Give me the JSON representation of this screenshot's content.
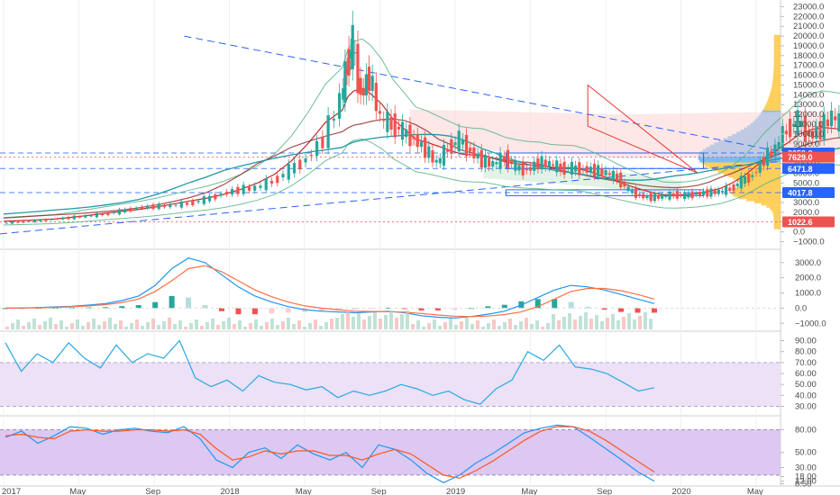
{
  "chart_data": [
    {
      "type": "candlestick",
      "panel": "price",
      "ylim": [
        -1500,
        23500
      ],
      "yticks": [
        "23000.0",
        "22000.0",
        "21000.0",
        "20000.0",
        "19000.0",
        "18000.0",
        "17000.0",
        "16000.0",
        "15000.0",
        "14000.0",
        "13000.0",
        "12000.0",
        "11000.0",
        "10000.0",
        "9000.0",
        "7000.0",
        "6000.0",
        "5000.0",
        "4000.0",
        "3000.0",
        "2000.0",
        "1000.0",
        "0.0",
        "−1000.0"
      ],
      "ytick_values": [
        23000,
        22000,
        21000,
        20000,
        19000,
        18000,
        17000,
        16000,
        15000,
        14000,
        13000,
        12000,
        11000,
        10000,
        9000,
        7000,
        6000,
        5000,
        4000,
        3000,
        2000,
        1000,
        0,
        -1000
      ],
      "price_labels": [
        {
          "text": "8059.8",
          "value": 8059.8,
          "color": "#2962ff"
        },
        {
          "text": "7629.0",
          "value": 7629.0,
          "color": "#ef5350"
        },
        {
          "text": "6471.8",
          "value": 6471.8,
          "color": "#2962ff"
        },
        {
          "text": "4017.8",
          "value": 4017.8,
          "color": "#2962ff"
        },
        {
          "text": "1022.6",
          "value": 1022.6,
          "color": "#ef5350"
        }
      ],
      "close_path": [
        [
          0,
          900
        ],
        [
          0.3,
          1000
        ],
        [
          0.6,
          1150
        ],
        [
          0.9,
          1300
        ],
        [
          1.2,
          1450
        ],
        [
          1.5,
          1600
        ],
        [
          1.8,
          1800
        ],
        [
          2.1,
          2100
        ],
        [
          2.4,
          2450
        ],
        [
          2.7,
          2600
        ],
        [
          3.0,
          2700
        ],
        [
          3.3,
          2900
        ],
        [
          3.6,
          3300
        ],
        [
          3.9,
          3900
        ],
        [
          4.2,
          4300
        ],
        [
          4.5,
          4500
        ],
        [
          4.8,
          5200
        ],
        [
          5.1,
          6300
        ],
        [
          5.4,
          7500
        ],
        [
          5.7,
          9500
        ],
        [
          6.0,
          13500
        ],
        [
          6.1,
          17000
        ],
        [
          6.2,
          19200
        ],
        [
          6.35,
          14000
        ],
        [
          6.5,
          16000
        ],
        [
          6.7,
          11500
        ],
        [
          6.9,
          11000
        ],
        [
          7.1,
          10200
        ],
        [
          7.3,
          9500
        ],
        [
          7.5,
          8400
        ],
        [
          7.7,
          7000
        ],
        [
          7.9,
          8600
        ],
        [
          8.1,
          9400
        ],
        [
          8.3,
          8200
        ],
        [
          8.5,
          7300
        ],
        [
          8.7,
          6900
        ],
        [
          8.9,
          7600
        ],
        [
          9.1,
          6600
        ],
        [
          9.3,
          6300
        ],
        [
          9.5,
          7100
        ],
        [
          9.7,
          6900
        ],
        [
          9.9,
          6500
        ],
        [
          10.1,
          6500
        ],
        [
          10.3,
          6400
        ],
        [
          10.5,
          6300
        ],
        [
          10.7,
          6000
        ],
        [
          10.9,
          5500
        ],
        [
          11.1,
          4200
        ],
        [
          11.3,
          3700
        ],
        [
          11.5,
          3500
        ],
        [
          11.7,
          3600
        ],
        [
          11.9,
          3800
        ],
        [
          12.1,
          3700
        ],
        [
          12.3,
          3900
        ],
        [
          12.5,
          4000
        ],
        [
          12.7,
          4100
        ],
        [
          12.9,
          4400
        ],
        [
          13.1,
          5200
        ],
        [
          13.3,
          5800
        ],
        [
          13.5,
          7500
        ],
        [
          13.7,
          8500
        ],
        [
          13.9,
          10500
        ],
        [
          14.1,
          11300
        ],
        [
          14.3,
          9800
        ],
        [
          14.5,
          10500
        ],
        [
          14.7,
          11800
        ],
        [
          14.9,
          10600
        ],
        [
          15.1,
          10200
        ],
        [
          15.3,
          9800
        ],
        [
          15.5,
          10300
        ],
        [
          15.7,
          9800
        ],
        [
          15.9,
          8300
        ],
        [
          16.1,
          8500
        ],
        [
          16.3,
          7630
        ]
      ],
      "x_ticks": [
        {
          "label": "2017",
          "x": 0
        },
        {
          "label": "May",
          "x": 1.33
        },
        {
          "label": "Sep",
          "x": 2.67
        },
        {
          "label": "2018",
          "x": 4.0
        },
        {
          "label": "May",
          "x": 5.33
        },
        {
          "label": "Sep",
          "x": 6.67
        },
        {
          "label": "2019",
          "x": 8.0
        },
        {
          "label": "May",
          "x": 9.33
        },
        {
          "label": "Sep",
          "x": 10.67
        },
        {
          "label": "2020",
          "x": 12.0
        },
        {
          "label": "May",
          "x": 13.33
        }
      ]
    },
    {
      "type": "line",
      "panel": "macd",
      "ylim": [
        -1400,
        3700
      ],
      "yticks": [
        "3000.0",
        "2000.0",
        "1000.0",
        "0.0",
        "−1000.0"
      ],
      "ytick_values": [
        3000,
        2000,
        1000,
        0,
        -1000
      ],
      "series": [
        {
          "values": [
            0,
            20,
            40,
            80,
            120,
            200,
            300,
            500,
            800,
            1500,
            2600,
            3300,
            3000,
            2200,
            1400,
            800,
            400,
            100,
            -100,
            -200,
            -250,
            -300,
            -250,
            -200,
            -300,
            -500,
            -600,
            -650,
            -550,
            -400,
            -200,
            200,
            700,
            1200,
            1500,
            1400,
            1200,
            900,
            600,
            300
          ]
        },
        {
          "values": [
            0,
            10,
            25,
            55,
            90,
            150,
            230,
            370,
            600,
            1100,
            1800,
            2600,
            2800,
            2400,
            1800,
            1200,
            750,
            400,
            150,
            0,
            -100,
            -200,
            -220,
            -230,
            -260,
            -350,
            -450,
            -530,
            -560,
            -520,
            -420,
            -250,
            100,
            600,
            1100,
            1300,
            1300,
            1150,
            900,
            600
          ]
        }
      ],
      "histogram": [
        0,
        10,
        15,
        25,
        30,
        50,
        70,
        130,
        200,
        400,
        800,
        700,
        200,
        -200,
        -400,
        -400,
        -350,
        -300,
        -250,
        -200,
        -150,
        -100,
        -30,
        30,
        -40,
        -150,
        -150,
        -120,
        10,
        120,
        220,
        450,
        600,
        600,
        400,
        100,
        -100,
        -250,
        -300,
        -300
      ]
    },
    {
      "type": "line",
      "panel": "rsi",
      "ylim": [
        23,
        97
      ],
      "yticks": [
        "90.00",
        "80.00",
        "70.00",
        "60.00",
        "50.00",
        "40.00",
        "30.00"
      ],
      "ytick_values": [
        90,
        80,
        70,
        60,
        50,
        40,
        30
      ],
      "band": [
        30,
        70
      ],
      "series": [
        {
          "values": [
            88,
            62,
            78,
            70,
            88,
            74,
            65,
            86,
            70,
            78,
            74,
            90,
            56,
            48,
            54,
            44,
            58,
            52,
            50,
            45,
            48,
            38,
            44,
            40,
            44,
            50,
            46,
            40,
            44,
            36,
            32,
            46,
            54,
            80,
            72,
            86,
            66,
            64,
            60,
            52,
            44,
            47
          ]
        }
      ]
    },
    {
      "type": "line",
      "panel": "stoch_rsi",
      "ylim": [
        8,
        96
      ],
      "yticks": [
        "80.00",
        "50.00",
        "30.00",
        "18.00",
        "12.00",
        "8.50"
      ],
      "ytick_values": [
        80,
        50,
        30,
        18,
        12,
        8.5
      ],
      "band": [
        20,
        80
      ],
      "series": [
        {
          "values": [
            70,
            78,
            62,
            72,
            84,
            82,
            74,
            80,
            82,
            78,
            76,
            84,
            68,
            40,
            30,
            50,
            56,
            42,
            60,
            48,
            40,
            50,
            30,
            60,
            54,
            40,
            22,
            10,
            20,
            36,
            48,
            62,
            76,
            82,
            86,
            84,
            70,
            55,
            40,
            24,
            12
          ]
        },
        {
          "values": [
            72,
            74,
            70,
            68,
            78,
            80,
            78,
            78,
            80,
            80,
            78,
            80,
            74,
            55,
            40,
            44,
            52,
            48,
            52,
            52,
            46,
            46,
            40,
            48,
            54,
            48,
            34,
            20,
            16,
            26,
            38,
            52,
            66,
            78,
            84,
            84,
            78,
            66,
            52,
            38,
            24
          ]
        }
      ]
    }
  ]
}
